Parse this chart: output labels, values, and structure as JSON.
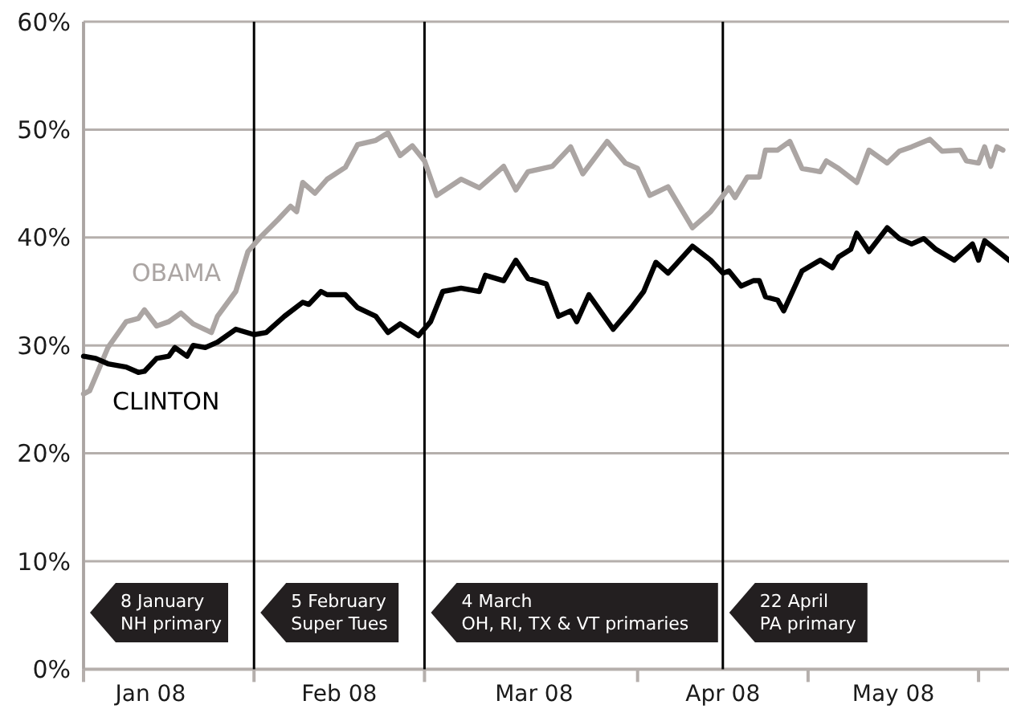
{
  "chart_data": {
    "type": "line",
    "xlim": [
      "2008-01-08",
      "2008-06-08"
    ],
    "ylim": [
      0,
      60
    ],
    "yticks": [
      {
        "value": 0,
        "label": "0%"
      },
      {
        "value": 10,
        "label": "10%"
      },
      {
        "value": 20,
        "label": "20%"
      },
      {
        "value": 30,
        "label": "30%"
      },
      {
        "value": 40,
        "label": "40%"
      },
      {
        "value": 50,
        "label": "50%"
      },
      {
        "value": 60,
        "label": "60%"
      }
    ],
    "xticks": [
      {
        "value": "2008-01-08",
        "label": null
      },
      {
        "value": "2008-01-19",
        "label": "Jan 08"
      },
      {
        "value": "2008-02-05",
        "label": null
      },
      {
        "value": "2008-02-19",
        "label": "Feb 08"
      },
      {
        "value": "2008-03-04",
        "label": null
      },
      {
        "value": "2008-03-22",
        "label": "Mar 08"
      },
      {
        "value": "2008-04-08",
        "label": null
      },
      {
        "value": "2008-04-22",
        "label": "Apr 08"
      },
      {
        "value": "2008-05-06",
        "label": null
      },
      {
        "value": "2008-05-20",
        "label": "May 08"
      },
      {
        "value": "2008-06-03",
        "label": null
      }
    ],
    "grid": "y",
    "line_style": "solid",
    "series": [
      {
        "name": "OBAMA",
        "color": "#aba5a3",
        "x": [
          "2008-01-08",
          "2008-01-09",
          "2008-01-12",
          "2008-01-15",
          "2008-01-17",
          "2008-01-18",
          "2008-01-20",
          "2008-01-22",
          "2008-01-24",
          "2008-01-26",
          "2008-01-29",
          "2008-01-30",
          "2008-02-02",
          "2008-02-04",
          "2008-02-06",
          "2008-02-09",
          "2008-02-11",
          "2008-02-12",
          "2008-02-13",
          "2008-02-15",
          "2008-02-17",
          "2008-02-20",
          "2008-02-22",
          "2008-02-25",
          "2008-02-27",
          "2008-02-29",
          "2008-03-02",
          "2008-03-04",
          "2008-03-06",
          "2008-03-10",
          "2008-03-13",
          "2008-03-15",
          "2008-03-17",
          "2008-03-19",
          "2008-03-21",
          "2008-03-25",
          "2008-03-28",
          "2008-03-30",
          "2008-04-03",
          "2008-04-06",
          "2008-04-08",
          "2008-04-10",
          "2008-04-13",
          "2008-04-17",
          "2008-04-20",
          "2008-04-23",
          "2008-04-24",
          "2008-04-26",
          "2008-04-28",
          "2008-04-29",
          "2008-05-01",
          "2008-05-03",
          "2008-05-05",
          "2008-05-08",
          "2008-05-09",
          "2008-05-11",
          "2008-05-14",
          "2008-05-16",
          "2008-05-19",
          "2008-05-21",
          "2008-05-23",
          "2008-05-26",
          "2008-05-28",
          "2008-05-31",
          "2008-06-01",
          "2008-06-03",
          "2008-06-04",
          "2008-06-05",
          "2008-06-06",
          "2008-06-07"
        ],
        "values": [
          25.5,
          25.8,
          29.8,
          32.2,
          32.5,
          33.3,
          31.8,
          32.2,
          33,
          32,
          31.2,
          32.7,
          35,
          38.7,
          40,
          41.7,
          42.9,
          42.4,
          45.1,
          44.1,
          45.4,
          46.5,
          48.6,
          49,
          49.7,
          47.6,
          48.5,
          47.1,
          43.9,
          45.4,
          44.6,
          45.6,
          46.6,
          44.4,
          46.1,
          46.6,
          48.4,
          45.9,
          48.9,
          46.9,
          46.4,
          43.9,
          44.7,
          40.9,
          42.4,
          44.6,
          43.7,
          45.6,
          45.6,
          48.1,
          48.1,
          48.9,
          46.4,
          46.1,
          47.1,
          46.4,
          45.1,
          48.1,
          46.9,
          48,
          48.4,
          49.1,
          48,
          48.1,
          47.1,
          46.9,
          48.4,
          46.6,
          48.4,
          48.1
        ]
      },
      {
        "name": "CLINTON",
        "color": "#000000",
        "x": [
          "2008-01-08",
          "2008-01-10",
          "2008-01-12",
          "2008-01-15",
          "2008-01-17",
          "2008-01-18",
          "2008-01-20",
          "2008-01-22",
          "2008-01-23",
          "2008-01-25",
          "2008-01-26",
          "2008-01-28",
          "2008-01-30",
          "2008-02-02",
          "2008-02-05",
          "2008-02-07",
          "2008-02-10",
          "2008-02-13",
          "2008-02-14",
          "2008-02-16",
          "2008-02-17",
          "2008-02-20",
          "2008-02-22",
          "2008-02-25",
          "2008-02-27",
          "2008-02-29",
          "2008-03-03",
          "2008-03-05",
          "2008-03-07",
          "2008-03-10",
          "2008-03-13",
          "2008-03-14",
          "2008-03-17",
          "2008-03-19",
          "2008-03-21",
          "2008-03-24",
          "2008-03-26",
          "2008-03-28",
          "2008-03-29",
          "2008-03-31",
          "2008-04-04",
          "2008-04-07",
          "2008-04-09",
          "2008-04-11",
          "2008-04-13",
          "2008-04-17",
          "2008-04-20",
          "2008-04-22",
          "2008-04-23",
          "2008-04-25",
          "2008-04-27",
          "2008-04-28",
          "2008-04-29",
          "2008-05-01",
          "2008-05-02",
          "2008-05-05",
          "2008-05-08",
          "2008-05-10",
          "2008-05-11",
          "2008-05-13",
          "2008-05-14",
          "2008-05-16",
          "2008-05-19",
          "2008-05-21",
          "2008-05-23",
          "2008-05-25",
          "2008-05-27",
          "2008-05-30",
          "2008-06-02",
          "2008-06-03",
          "2008-06-04",
          "2008-06-08"
        ],
        "values": [
          29,
          28.8,
          28.3,
          28,
          27.5,
          27.6,
          28.8,
          29,
          29.8,
          29,
          30,
          29.8,
          30.3,
          31.5,
          31,
          31.2,
          32.7,
          34,
          33.8,
          35,
          34.7,
          34.7,
          33.5,
          32.7,
          31.2,
          32,
          30.9,
          32.2,
          35,
          35.3,
          35,
          36.5,
          36,
          37.9,
          36.2,
          35.7,
          32.7,
          33.2,
          32.2,
          34.7,
          31.5,
          33.5,
          35,
          37.7,
          36.7,
          39.2,
          37.9,
          36.7,
          36.9,
          35.5,
          36,
          36,
          34.5,
          34.2,
          33.2,
          36.9,
          37.9,
          37.2,
          38.2,
          38.9,
          40.4,
          38.7,
          40.9,
          39.9,
          39.4,
          39.9,
          38.9,
          37.9,
          39.4,
          37.9,
          39.7,
          37.9
        ]
      }
    ],
    "ref_lines": [
      {
        "axis": "x",
        "value": "2008-01-08",
        "label": "8 January\nNH primary",
        "color": "#aba5a3"
      },
      {
        "axis": "x",
        "value": "2008-02-05",
        "label": "5 February\nSuper Tues",
        "color": "#000000"
      },
      {
        "axis": "x",
        "value": "2008-03-04",
        "label": "4 March\nOH, RI, TX & VT primaries",
        "color": "#000000"
      },
      {
        "axis": "x",
        "value": "2008-04-22",
        "label": "22 April\nPA primary",
        "color": "#000000"
      }
    ]
  }
}
